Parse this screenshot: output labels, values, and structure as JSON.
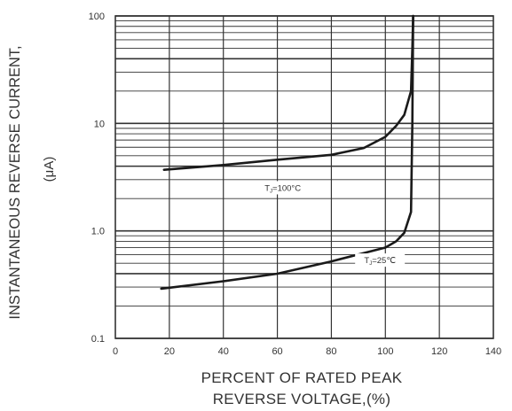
{
  "chart_data": {
    "type": "line",
    "title": "",
    "xlabel_line1": "PERCENT OF RATED PEAK",
    "xlabel_line2": "REVERSE VOLTAGE,(%)",
    "ylabel_line1": "INSTANTANEOUS REVERSE CURRENT,",
    "ylabel_line2": "(μA)",
    "x_ticks": [
      "0",
      "20",
      "40",
      "60",
      "80",
      "100",
      "120",
      "140"
    ],
    "x_tick_values": [
      0,
      20,
      40,
      60,
      80,
      100,
      120,
      140
    ],
    "y_ticks": [
      "0.1",
      "1.0",
      "10",
      "100"
    ],
    "y_tick_values": [
      0.1,
      1,
      10,
      100
    ],
    "xlim": [
      0,
      140
    ],
    "ylim": [
      0.1,
      100
    ],
    "y_scale": "log",
    "grid": true,
    "series": [
      {
        "name": "TJ=100°C",
        "label_main": "T",
        "label_sub": "J",
        "label_rest": "=100°C",
        "x": [
          18,
          40,
          60,
          80,
          92,
          100,
          104,
          107,
          109.5,
          110,
          110.3
        ],
        "y": [
          3.7,
          4.1,
          4.6,
          5.1,
          5.9,
          7.5,
          9.5,
          12,
          20,
          50,
          100
        ]
      },
      {
        "name": "TJ=25℃",
        "label_main": "T",
        "label_sub": "J",
        "label_rest": "=25℃",
        "x": [
          17,
          40,
          60,
          80,
          100,
          104,
          107,
          109.5,
          110,
          110.3
        ],
        "y": [
          0.29,
          0.34,
          0.4,
          0.52,
          0.7,
          0.8,
          0.96,
          1.5,
          10,
          100
        ]
      }
    ],
    "colors": {
      "line": "#1a1a1a",
      "grid": "#333333",
      "text": "#333333"
    }
  }
}
